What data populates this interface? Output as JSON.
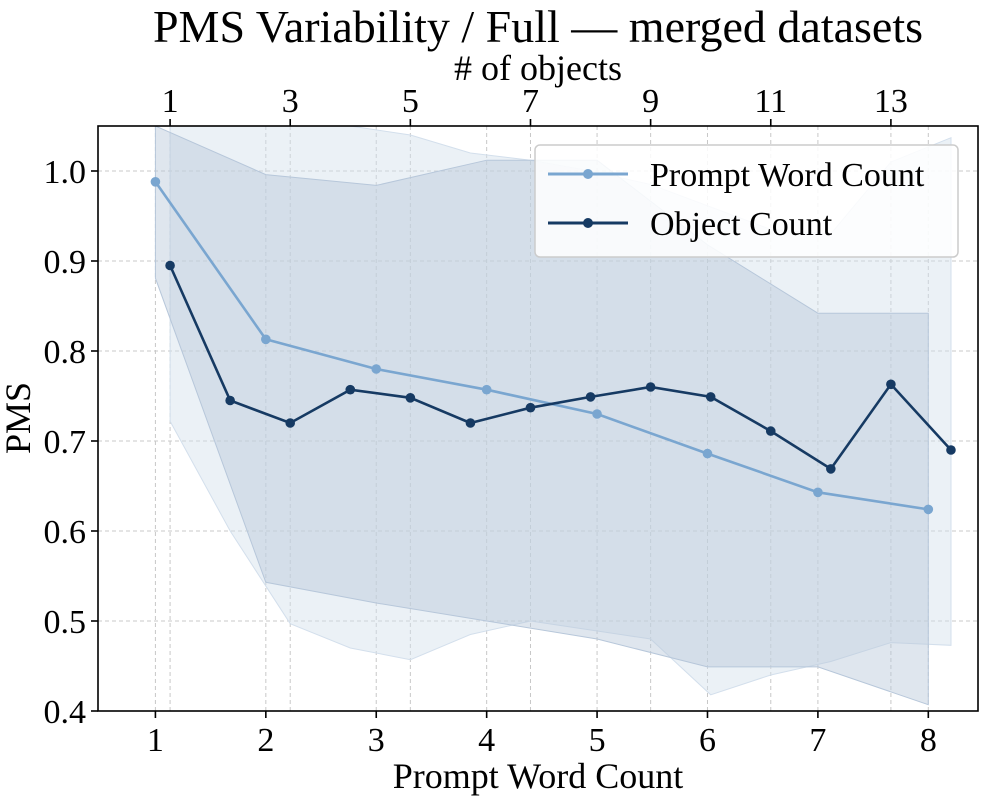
{
  "chart_data": {
    "type": "line",
    "title": "PMS Variability / Full — merged datasets",
    "xlabel": "Prompt Word Count",
    "ylabel": "PMS",
    "top_xlabel": "# of objects",
    "ylim": [
      0.4,
      1.05
    ],
    "yticks": [
      0.4,
      0.5,
      0.6,
      0.7,
      0.8,
      0.9,
      1.0
    ],
    "ytick_labels": [
      "0.4",
      "0.5",
      "0.6",
      "0.7",
      "0.8",
      "0.9",
      "1.0"
    ],
    "bottom_axis": {
      "range": [
        0.48,
        8.45
      ],
      "ticks": [
        1,
        2,
        3,
        4,
        5,
        6,
        7,
        8
      ],
      "tick_labels": [
        "1",
        "2",
        "3",
        "4",
        "5",
        "6",
        "7",
        "8"
      ]
    },
    "top_axis": {
      "range": [
        -0.2,
        14.45
      ],
      "ticks": [
        1,
        3,
        5,
        7,
        9,
        11,
        13
      ],
      "tick_labels": [
        "1",
        "3",
        "5",
        "7",
        "9",
        "11",
        "13"
      ]
    },
    "grid": true,
    "legend_position": "top-right",
    "series": [
      {
        "name": "Prompt Word Count",
        "axis": "bottom",
        "color": "#7aa6d0",
        "band_color": "#b7c7da",
        "x": [
          1,
          2,
          3,
          4,
          5,
          6,
          7,
          8
        ],
        "y": [
          0.988,
          0.813,
          0.78,
          0.757,
          0.73,
          0.686,
          0.643,
          0.624
        ],
        "band_upper": [
          1.05,
          0.996,
          0.984,
          1.012,
          1.012,
          0.918,
          0.842,
          0.842
        ],
        "band_lower": [
          0.881,
          0.543,
          0.52,
          0.5,
          0.48,
          0.449,
          0.449,
          0.407
        ]
      },
      {
        "name": "Object Count",
        "axis": "top",
        "color": "#163a63",
        "band_color": "#d3dfec",
        "x": [
          1,
          2,
          3,
          4,
          5,
          6,
          7,
          8,
          9,
          10,
          11,
          12,
          13,
          14
        ],
        "y": [
          0.895,
          0.745,
          0.72,
          0.757,
          0.748,
          0.72,
          0.737,
          0.749,
          0.76,
          0.749,
          0.711,
          0.669,
          0.763,
          0.69
        ],
        "band_upper": [
          1.05,
          1.05,
          1.05,
          1.05,
          1.04,
          1.02,
          1.012,
          1.0,
          0.985,
          0.96,
          0.935,
          0.93,
          1.01,
          1.037
        ],
        "band_lower": [
          0.722,
          0.6,
          0.497,
          0.47,
          0.457,
          0.485,
          0.5,
          0.49,
          0.48,
          0.418,
          0.44,
          0.455,
          0.476,
          0.473
        ]
      }
    ]
  }
}
